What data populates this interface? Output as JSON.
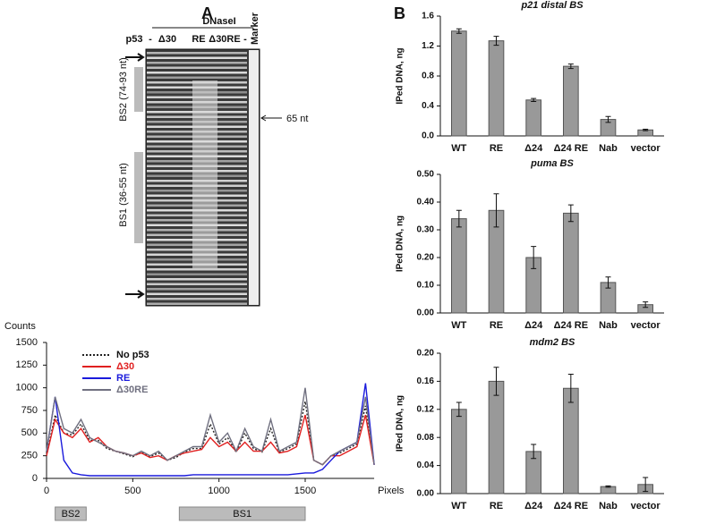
{
  "panels": {
    "a": "A",
    "b": "B"
  },
  "gel": {
    "header": "DNaseI",
    "p53": "p53",
    "lanes": [
      "-",
      "Δ30",
      "RE",
      "Δ30RE",
      "-"
    ],
    "marker": "Marker",
    "bs2": "BS2 (74-93 nt)",
    "bs1": "BS1 (36-55 nt)",
    "size": "65 nt"
  },
  "chart_data": [
    {
      "type": "line",
      "ylabel": "Counts",
      "xlabel": "Pixels",
      "x": [
        0,
        50,
        100,
        150,
        200,
        250,
        300,
        350,
        400,
        450,
        500,
        550,
        600,
        650,
        700,
        750,
        800,
        850,
        900,
        950,
        1000,
        1050,
        1100,
        1150,
        1200,
        1250,
        1300,
        1350,
        1400,
        1450,
        1500,
        1550,
        1600,
        1650,
        1700,
        1750,
        1800,
        1850,
        1900
      ],
      "xlim": [
        0,
        1900
      ],
      "xticks": [
        0,
        500,
        1000,
        1500
      ],
      "ylim": [
        0,
        1500
      ],
      "yticks": [
        0,
        250,
        500,
        750,
        1000,
        1250,
        1500
      ],
      "series": [
        {
          "name": "No p53",
          "color": "#222222",
          "dash": true,
          "values": [
            250,
            700,
            500,
            480,
            600,
            420,
            420,
            330,
            300,
            270,
            240,
            290,
            240,
            280,
            200,
            230,
            290,
            330,
            330,
            600,
            380,
            450,
            290,
            500,
            330,
            290,
            550,
            290,
            330,
            380,
            850,
            200,
            150,
            250,
            280,
            330,
            380,
            800,
            150
          ]
        },
        {
          "name": "Δ30",
          "color": "#e02020",
          "dash": false,
          "values": [
            250,
            650,
            500,
            450,
            550,
            400,
            450,
            350,
            300,
            280,
            250,
            280,
            230,
            250,
            200,
            250,
            280,
            300,
            320,
            450,
            350,
            400,
            300,
            400,
            300,
            300,
            400,
            280,
            300,
            350,
            700,
            200,
            150,
            250,
            250,
            300,
            350,
            700,
            150
          ]
        },
        {
          "name": "RE",
          "color": "#1a1adc",
          "dash": false,
          "values": [
            300,
            900,
            200,
            60,
            40,
            30,
            30,
            30,
            30,
            30,
            30,
            30,
            30,
            30,
            30,
            30,
            30,
            40,
            40,
            40,
            40,
            40,
            40,
            40,
            40,
            40,
            40,
            40,
            40,
            50,
            60,
            60,
            100,
            200,
            300,
            350,
            400,
            1050,
            150
          ]
        },
        {
          "name": "Δ30RE",
          "color": "#707080",
          "dash": false,
          "values": [
            300,
            900,
            550,
            500,
            650,
            450,
            400,
            350,
            300,
            280,
            250,
            300,
            250,
            300,
            200,
            250,
            300,
            350,
            350,
            700,
            400,
            500,
            300,
            550,
            350,
            300,
            650,
            300,
            350,
            400,
            1000,
            200,
            150,
            250,
            300,
            350,
            400,
            900,
            150
          ]
        }
      ],
      "regions": [
        {
          "label": "BS2",
          "start": 50,
          "end": 230
        },
        {
          "label": "BS1",
          "start": 770,
          "end": 1500
        }
      ]
    },
    {
      "type": "bar",
      "title": "p21 distal BS",
      "ylabel": "IPed DNA, ng",
      "color": "#999999",
      "categories": [
        "WT",
        "RE",
        "Δ24",
        "Δ24 RE",
        "Nab",
        "vector"
      ],
      "values": [
        1.4,
        1.27,
        0.48,
        0.93,
        0.22,
        0.08
      ],
      "errors": [
        0.03,
        0.06,
        0.02,
        0.03,
        0.04,
        0.01
      ],
      "ylim": [
        0,
        1.6
      ],
      "yticks": [
        {
          "value": 0,
          "label": "0.0"
        },
        0.4,
        0.8,
        1.2,
        1.6
      ]
    },
    {
      "type": "bar",
      "title": "puma BS",
      "ylabel": "IPed DNA, ng",
      "color": "#999999",
      "categories": [
        "WT",
        "RE",
        "Δ24",
        "Δ24 RE",
        "Nab",
        "vector"
      ],
      "values": [
        0.34,
        0.37,
        0.2,
        0.36,
        0.11,
        0.03
      ],
      "errors": [
        0.03,
        0.06,
        0.04,
        0.03,
        0.02,
        0.01
      ],
      "ylim": [
        0,
        0.5
      ],
      "yticks": [
        {
          "value": 0,
          "label": "0.00"
        },
        {
          "value": 0.1,
          "label": "0.10"
        },
        {
          "value": 0.2,
          "label": "0.20"
        },
        {
          "value": 0.3,
          "label": "0.30"
        },
        {
          "value": 0.4,
          "label": "0.40"
        },
        {
          "value": 0.5,
          "label": "0.50"
        }
      ]
    },
    {
      "type": "bar",
      "title": "mdm2 BS",
      "ylabel": "IPed DNA, ng",
      "color": "#999999",
      "categories": [
        "WT",
        "RE",
        "Δ24",
        "Δ24 RE",
        "Nab",
        "vector"
      ],
      "values": [
        0.12,
        0.16,
        0.06,
        0.15,
        0.01,
        0.013
      ],
      "errors": [
        0.01,
        0.02,
        0.01,
        0.02,
        0.001,
        0.01
      ],
      "ylim": [
        0,
        0.2
      ],
      "yticks": [
        {
          "value": 0,
          "label": "0.00"
        },
        0.04,
        0.08,
        0.12,
        0.16,
        {
          "value": 0.2,
          "label": "0.20"
        }
      ]
    }
  ]
}
